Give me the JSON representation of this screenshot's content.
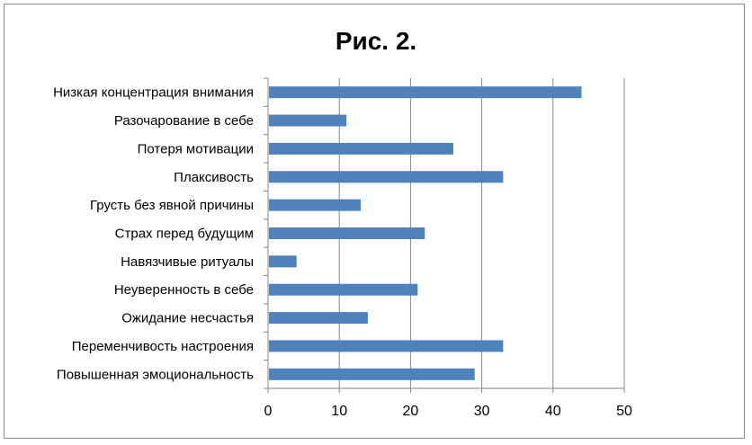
{
  "chart_data": {
    "type": "bar",
    "orientation": "horizontal",
    "title": "Рис. 2.",
    "categories": [
      "Низкая концентрация внимания",
      "Разочарование в себе",
      "Потеря мотивации",
      "Плаксивость",
      "Грусть без явной причины",
      "Страх перед будущим",
      "Навязчивые ритуалы",
      "Неуверенность в себе",
      "Ожидание несчастья",
      "Переменчивость настроения",
      "Повышенная эмоциональность"
    ],
    "values": [
      44,
      11,
      26,
      33,
      13,
      22,
      4,
      21,
      14,
      33,
      29
    ],
    "xlim": [
      0,
      50
    ],
    "x_ticks": [
      "0",
      "10",
      "20",
      "30",
      "40",
      "50"
    ],
    "grid": "vertical",
    "legend": "none",
    "bar_color": "#4f81bd"
  }
}
